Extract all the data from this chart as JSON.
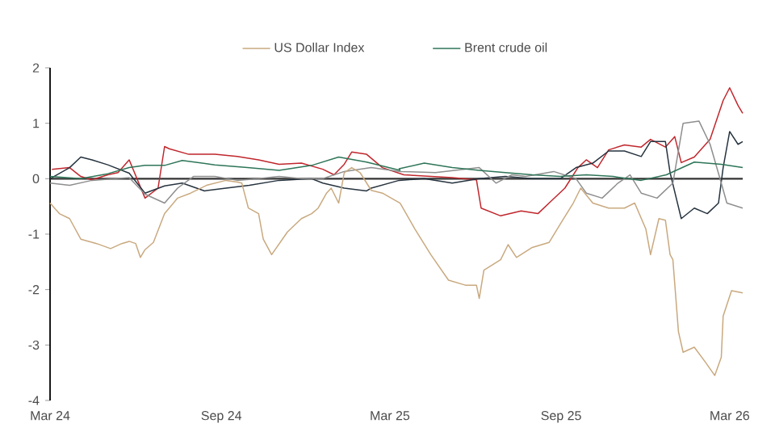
{
  "chart_data": {
    "type": "line",
    "xlim": [
      "2024-03-01",
      "2026-03-15"
    ],
    "xticks": [
      {
        "value": "2024-03-01",
        "label": "Mar 24"
      },
      {
        "value": "2024-09-01",
        "label": "Sep 24"
      },
      {
        "value": "2025-03-01",
        "label": "Mar 25"
      },
      {
        "value": "2025-09-01",
        "label": "Sep 25"
      },
      {
        "value": "2026-03-01",
        "label": "Mar 26"
      }
    ],
    "ylim": [
      -4,
      2
    ],
    "yticks": [
      -4,
      -3,
      -2,
      -1,
      0,
      1,
      2
    ],
    "grid": false,
    "legend": "top",
    "marker": "none",
    "line_style": "solid",
    "ref_lines": [
      {
        "axis": "y",
        "value": 0,
        "color": "#333333"
      }
    ],
    "series": [
      {
        "color": "#c0272d",
        "x": [
          "2024-03-03",
          "2024-03-22",
          "2024-04-03",
          "2024-04-15",
          "2024-05-02",
          "2024-05-13",
          "2024-05-25",
          "2024-06-11",
          "2024-06-25",
          "2024-07-02",
          "2024-07-07",
          "2024-07-28",
          "2024-08-25",
          "2024-09-18",
          "2024-10-11",
          "2024-11-02",
          "2024-11-26",
          "2024-12-19",
          "2024-12-31",
          "2025-01-11",
          "2025-01-19",
          "2025-02-04",
          "2025-02-21",
          "2025-03-16",
          "2025-05-07",
          "2025-06-02",
          "2025-06-07",
          "2025-06-28",
          "2025-07-20",
          "2025-08-07",
          "2025-08-19",
          "2025-09-05",
          "2025-09-19",
          "2025-09-28",
          "2025-10-10",
          "2025-10-22",
          "2025-11-08",
          "2025-11-26",
          "2025-12-06",
          "2025-12-22",
          "2026-01-01",
          "2026-01-08",
          "2026-01-22",
          "2026-02-08",
          "2026-02-22",
          "2026-03-01",
          "2026-03-10",
          "2026-03-15"
        ],
        "values": [
          0.17,
          0.2,
          0.04,
          -0.02,
          0.07,
          0.11,
          0.34,
          -0.35,
          -0.17,
          0.58,
          0.54,
          0.44,
          0.44,
          0.4,
          0.34,
          0.26,
          0.28,
          0.17,
          0.07,
          0.26,
          0.48,
          0.44,
          0.2,
          0.07,
          0.02,
          -0.02,
          -0.53,
          -0.67,
          -0.58,
          -0.63,
          -0.44,
          -0.17,
          0.2,
          0.34,
          0.2,
          0.52,
          0.61,
          0.57,
          0.71,
          0.57,
          0.76,
          0.29,
          0.39,
          0.71,
          1.41,
          1.64,
          1.32,
          1.18
        ]
      },
      {
        "color": "#26333f",
        "x": [
          "2024-03-01",
          "2024-03-22",
          "2024-04-03",
          "2024-04-15",
          "2024-05-02",
          "2024-05-25",
          "2024-06-11",
          "2024-07-02",
          "2024-07-21",
          "2024-08-14",
          "2024-09-06",
          "2024-10-01",
          "2024-11-02",
          "2024-12-07",
          "2024-12-19",
          "2025-01-11",
          "2025-02-04",
          "2025-02-09",
          "2025-03-11",
          "2025-04-07",
          "2025-05-07",
          "2025-06-05",
          "2025-07-03",
          "2025-08-01",
          "2025-08-31",
          "2025-09-17",
          "2025-10-05",
          "2025-10-22",
          "2025-11-08",
          "2025-11-26",
          "2025-12-06",
          "2025-12-22",
          "2025-12-27",
          "2026-01-08",
          "2026-01-22",
          "2026-02-05",
          "2026-02-17",
          "2026-02-22",
          "2026-03-01",
          "2026-03-10",
          "2026-03-15"
        ],
        "values": [
          0.0,
          0.2,
          0.39,
          0.34,
          0.25,
          0.1,
          -0.26,
          -0.13,
          -0.08,
          -0.22,
          -0.17,
          -0.12,
          -0.03,
          0.0,
          -0.08,
          -0.17,
          -0.22,
          -0.17,
          -0.03,
          0.0,
          -0.08,
          0.0,
          0.04,
          0.0,
          0.0,
          0.2,
          0.28,
          0.5,
          0.5,
          0.4,
          0.67,
          0.67,
          0.11,
          -0.72,
          -0.53,
          -0.63,
          -0.44,
          0.2,
          0.85,
          0.62,
          0.67
        ]
      },
      {
        "color": "#8e8e8e",
        "x": [
          "2024-03-01",
          "2024-03-22",
          "2024-04-15",
          "2024-05-25",
          "2024-06-11",
          "2024-07-02",
          "2024-07-16",
          "2024-08-02",
          "2024-08-25",
          "2024-09-18",
          "2024-10-11",
          "2024-11-02",
          "2024-11-26",
          "2024-12-19",
          "2025-01-11",
          "2025-02-09",
          "2025-03-12",
          "2025-04-19",
          "2025-06-05",
          "2025-06-23",
          "2025-07-10",
          "2025-07-25",
          "2025-08-24",
          "2025-09-17",
          "2025-09-28",
          "2025-10-15",
          "2025-11-01",
          "2025-11-14",
          "2025-11-26",
          "2025-12-13",
          "2025-12-30",
          "2026-01-10",
          "2026-01-27",
          "2026-02-08",
          "2026-02-20",
          "2026-02-26",
          "2026-03-15"
        ],
        "values": [
          -0.08,
          -0.12,
          -0.03,
          0.02,
          -0.28,
          -0.44,
          -0.17,
          0.04,
          0.04,
          -0.03,
          0.0,
          0.04,
          0.0,
          0.0,
          0.13,
          0.2,
          0.13,
          0.11,
          0.2,
          -0.08,
          0.07,
          0.04,
          0.13,
          0.0,
          -0.26,
          -0.35,
          -0.08,
          0.07,
          -0.26,
          -0.35,
          -0.08,
          1.0,
          1.04,
          0.62,
          -0.08,
          -0.44,
          -0.53
        ]
      },
      {
        "name": "US Dollar Index",
        "color": "#c9a97f",
        "x": [
          "2024-03-01",
          "2024-03-11",
          "2024-03-22",
          "2024-04-03",
          "2024-04-20",
          "2024-05-05",
          "2024-05-17",
          "2024-05-25",
          "2024-06-01",
          "2024-06-06",
          "2024-06-11",
          "2024-06-20",
          "2024-07-02",
          "2024-07-16",
          "2024-07-30",
          "2024-08-16",
          "2024-09-06",
          "2024-09-18",
          "2024-09-23",
          "2024-09-30",
          "2024-10-11",
          "2024-10-16",
          "2024-10-25",
          "2024-11-11",
          "2024-11-26",
          "2024-12-07",
          "2024-12-14",
          "2024-12-23",
          "2024-12-28",
          "2025-01-05",
          "2025-01-11",
          "2025-01-19",
          "2025-01-28",
          "2025-02-09",
          "2025-02-21",
          "2025-03-12",
          "2025-03-28",
          "2025-04-14",
          "2025-05-03",
          "2025-05-21",
          "2025-06-02",
          "2025-06-05",
          "2025-06-10",
          "2025-06-28",
          "2025-07-06",
          "2025-07-15",
          "2025-08-01",
          "2025-08-19",
          "2025-08-31",
          "2025-09-14",
          "2025-09-22",
          "2025-10-05",
          "2025-10-22",
          "2025-11-08",
          "2025-11-19",
          "2025-12-01",
          "2025-12-06",
          "2025-12-15",
          "2025-12-22",
          "2025-12-27",
          "2025-12-30",
          "2026-01-05",
          "2026-01-10",
          "2026-01-22",
          "2026-02-03",
          "2026-02-13",
          "2026-02-20",
          "2026-02-22",
          "2026-03-03",
          "2026-03-15"
        ],
        "values": [
          -0.44,
          -0.63,
          -0.72,
          -1.09,
          -1.17,
          -1.26,
          -1.17,
          -1.13,
          -1.17,
          -1.42,
          -1.28,
          -1.15,
          -0.63,
          -0.35,
          -0.26,
          -0.12,
          -0.03,
          -0.06,
          -0.08,
          -0.53,
          -0.63,
          -1.09,
          -1.37,
          -0.96,
          -0.72,
          -0.63,
          -0.53,
          -0.26,
          -0.17,
          -0.44,
          0.11,
          0.2,
          0.11,
          -0.21,
          -0.26,
          -0.44,
          -0.91,
          -1.37,
          -1.83,
          -1.92,
          -1.92,
          -2.16,
          -1.65,
          -1.46,
          -1.19,
          -1.42,
          -1.24,
          -1.15,
          -0.82,
          -0.44,
          -0.17,
          -0.44,
          -0.53,
          -0.53,
          -0.44,
          -0.91,
          -1.37,
          -0.72,
          -0.75,
          -1.37,
          -1.46,
          -2.76,
          -3.13,
          -3.04,
          -3.31,
          -3.55,
          -3.22,
          -2.48,
          -2.02,
          -2.06
        ]
      },
      {
        "name": "Brent crude oil",
        "color": "#2e7558",
        "x": [
          "2024-03-01",
          "2024-04-03",
          "2024-05-02",
          "2024-05-25",
          "2024-06-11",
          "2024-07-02",
          "2024-07-21",
          "2024-08-25",
          "2024-09-29",
          "2024-11-02",
          "2024-12-07",
          "2025-01-05",
          "2025-02-04",
          "2025-03-12",
          "2025-03-11",
          "2025-04-07",
          "2025-05-07",
          "2025-06-05",
          "2025-07-03",
          "2025-08-01",
          "2025-08-31",
          "2025-09-28",
          "2025-10-27",
          "2025-11-26",
          "2025-12-23",
          "2026-01-22",
          "2026-02-20",
          "2026-03-15"
        ],
        "values": [
          0.04,
          0.0,
          0.09,
          0.2,
          0.24,
          0.24,
          0.33,
          0.25,
          0.2,
          0.15,
          0.24,
          0.39,
          0.3,
          0.15,
          0.18,
          0.28,
          0.2,
          0.15,
          0.11,
          0.07,
          0.04,
          0.07,
          0.04,
          -0.03,
          0.07,
          0.3,
          0.26,
          0.2
        ]
      }
    ]
  }
}
